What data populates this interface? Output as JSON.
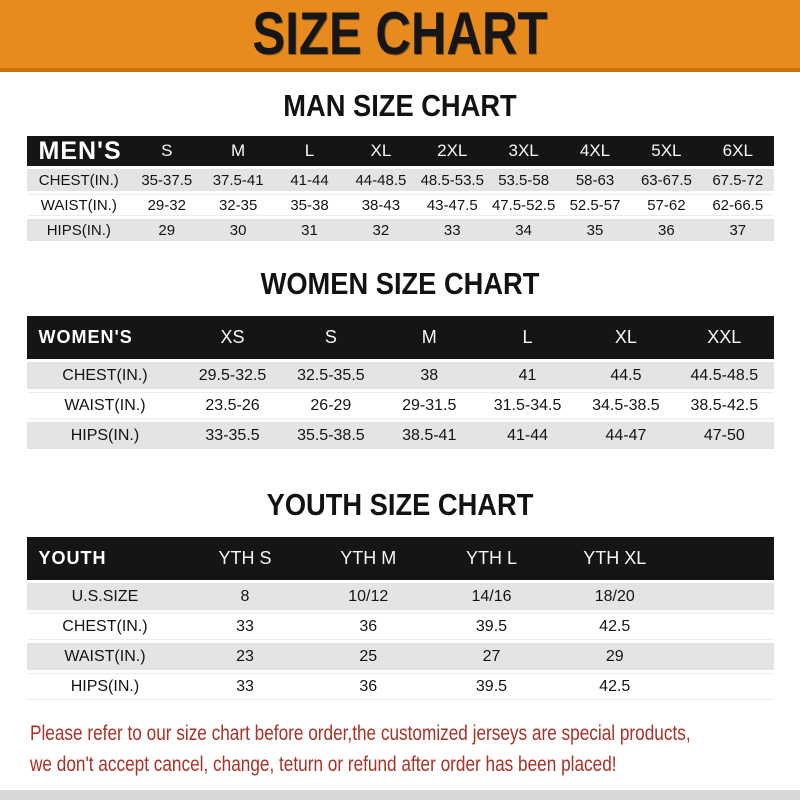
{
  "banner": {
    "title": "SIZE CHART"
  },
  "sections": [
    {
      "title": "MAN SIZE CHART",
      "table": {
        "header_label": "MEN'S",
        "columns": [
          "S",
          "M",
          "L",
          "XL",
          "2XL",
          "3XL",
          "4XL",
          "5XL",
          "6XL"
        ],
        "rows": [
          {
            "label": "CHEST(IN.)",
            "values": [
              "35-37.5",
              "37.5-41",
              "41-44",
              "44-48.5",
              "48.5-53.5",
              "53.5-58",
              "58-63",
              "63-67.5",
              "67.5-72"
            ]
          },
          {
            "label": "WAIST(IN.)",
            "values": [
              "29-32",
              "32-35",
              "35-38",
              "38-43",
              "43-47.5",
              "47.5-52.5",
              "52.5-57",
              "57-62",
              "62-66.5"
            ]
          },
          {
            "label": "HIPS(IN.)",
            "values": [
              "29",
              "30",
              "31",
              "32",
              "33",
              "34",
              "35",
              "36",
              "37"
            ]
          }
        ]
      }
    },
    {
      "title": "WOMEN SIZE CHART",
      "table": {
        "header_label": "WOMEN'S",
        "columns": [
          "XS",
          "S",
          "M",
          "L",
          "XL",
          "XXL"
        ],
        "rows": [
          {
            "label": "CHEST(IN.)",
            "values": [
              "29.5-32.5",
              "32.5-35.5",
              "38",
              "41",
              "44.5",
              "44.5-48.5"
            ]
          },
          {
            "label": "WAIST(IN.)",
            "values": [
              "23.5-26",
              "26-29",
              "29-31.5",
              "31.5-34.5",
              "34.5-38.5",
              "38.5-42.5"
            ]
          },
          {
            "label": "HIPS(IN.)",
            "values": [
              "33-35.5",
              "35.5-38.5",
              "38.5-41",
              "41-44",
              "44-47",
              "47-50"
            ]
          }
        ]
      }
    },
    {
      "title": "YOUTH SIZE CHART",
      "table": {
        "header_label": "YOUTH",
        "columns": [
          "YTH S",
          "YTH M",
          "YTH L",
          "YTH XL"
        ],
        "rows": [
          {
            "label": "U.S.SIZE",
            "values": [
              "8",
              "10/12",
              "14/16",
              "18/20"
            ]
          },
          {
            "label": "CHEST(IN.)",
            "values": [
              "33",
              "36",
              "39.5",
              "42.5"
            ]
          },
          {
            "label": "WAIST(IN.)",
            "values": [
              "23",
              "25",
              "27",
              "29"
            ]
          },
          {
            "label": "HIPS(IN.)",
            "values": [
              "33",
              "36",
              "39.5",
              "42.5"
            ]
          }
        ]
      }
    }
  ],
  "footer": {
    "line1": "Please refer to our size chart before order,the customized jerseys are special products,",
    "line2": "we don't accept cancel, change, teturn or refund after order has been placed!"
  },
  "colors": {
    "banner_orange": "#E88B1E",
    "banner_border": "#C5720F",
    "header_bar_black": "#151515",
    "band_gray": "#E4E4E2",
    "note_red": "#A93126",
    "bottom_strip_gray": "#D8D8D6"
  }
}
